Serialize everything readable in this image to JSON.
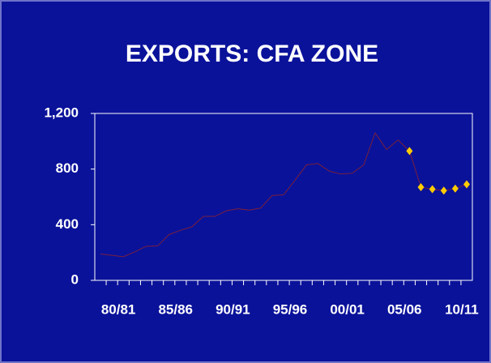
{
  "chart_data": {
    "type": "line",
    "title": "EXPORTS: CFA ZONE",
    "categories": [
      null,
      "80/81",
      null,
      null,
      null,
      null,
      "85/86",
      null,
      null,
      null,
      null,
      "90/91",
      null,
      null,
      null,
      null,
      "95/96",
      null,
      null,
      null,
      null,
      "00/01",
      null,
      null,
      null,
      null,
      "05/06",
      null,
      null,
      null,
      null,
      "10/11",
      null
    ],
    "series": [
      {
        "color": "#7a1f3a",
        "marker": false,
        "values": [
          190,
          180,
          170,
          205,
          245,
          248,
          330,
          360,
          385,
          460,
          460,
          500,
          515,
          505,
          520,
          610,
          615,
          720,
          830,
          840,
          785,
          765,
          770,
          830,
          1060,
          940,
          1010,
          930,
          null,
          null,
          null,
          null,
          null
        ]
      },
      {
        "color": "#ffcc00",
        "marker": true,
        "values": [
          null,
          null,
          null,
          null,
          null,
          null,
          null,
          null,
          null,
          null,
          null,
          null,
          null,
          null,
          null,
          null,
          null,
          null,
          null,
          null,
          null,
          null,
          null,
          null,
          null,
          null,
          null,
          930,
          670,
          655,
          645,
          660,
          690
        ]
      }
    ],
    "ylim": [
      0,
      1200
    ],
    "yticks": [
      0,
      400,
      800,
      {
        "value": 1200,
        "label": "1,200"
      }
    ],
    "grid": false
  }
}
